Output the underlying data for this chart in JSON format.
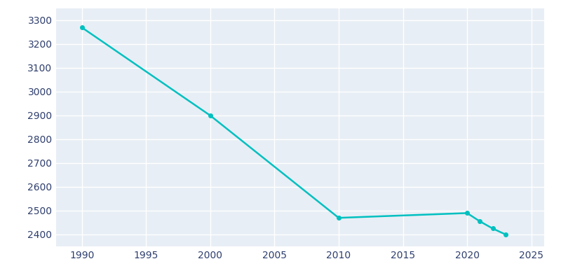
{
  "years": [
    1990,
    2000,
    2010,
    2020,
    2021,
    2022,
    2023
  ],
  "population": [
    3270,
    2900,
    2470,
    2490,
    2455,
    2425,
    2400
  ],
  "line_color": "#00C0C0",
  "marker_color": "#00C0C0",
  "background_color": "#E8EEF5",
  "figure_background": "#FFFFFF",
  "grid_color": "#FFFFFF",
  "text_color": "#2E3E6E",
  "xlim": [
    1988,
    2026
  ],
  "ylim": [
    2350,
    3350
  ],
  "xticks": [
    1990,
    1995,
    2000,
    2005,
    2010,
    2015,
    2020,
    2025
  ],
  "yticks": [
    2400,
    2500,
    2600,
    2700,
    2800,
    2900,
    3000,
    3100,
    3200,
    3300
  ],
  "figsize": [
    8.0,
    4.0
  ],
  "dpi": 100
}
